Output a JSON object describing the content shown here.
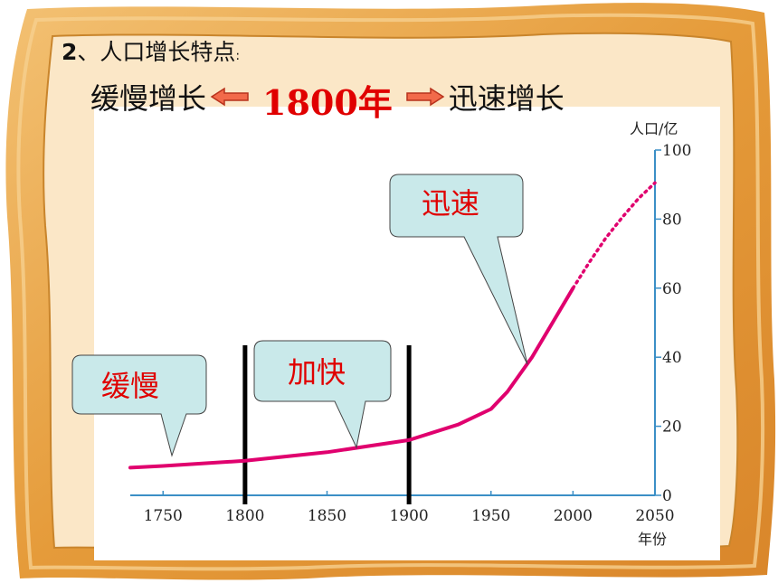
{
  "heading": {
    "number": "2",
    "text": "、人口增长特点",
    "colon": ":"
  },
  "subline": {
    "left": "缓慢增长",
    "year": "1800年",
    "right": "迅速增长"
  },
  "chart_data": {
    "type": "line",
    "ylabel": "人口/亿",
    "xlabel": "年份",
    "xlim": [
      1730,
      2050
    ],
    "ylim": [
      0,
      100
    ],
    "x_ticks": [
      1750,
      1800,
      1850,
      1900,
      1950,
      2000,
      2050
    ],
    "y_ticks": [
      0,
      20,
      40,
      60,
      80,
      100
    ],
    "series": [
      {
        "x": [
          1730,
          1750,
          1800,
          1850,
          1900,
          1930,
          1950,
          1960,
          1975,
          1990,
          2000
        ],
        "y": [
          8,
          8.5,
          10,
          12.5,
          16,
          20.5,
          25,
          30,
          40,
          52,
          60
        ],
        "style": "solid",
        "color": "#e0006e"
      },
      {
        "x": [
          2000,
          2010,
          2020,
          2030,
          2040,
          2050
        ],
        "y": [
          60,
          67.5,
          74.5,
          80.5,
          86,
          90.5
        ],
        "style": "dotted",
        "color": "#e0006e"
      }
    ],
    "dividers": [
      1800,
      1900
    ],
    "annotations": [
      {
        "text": "缓慢",
        "points_to": [
          1765,
          10
        ]
      },
      {
        "text": "加快",
        "points_to": [
          1875,
          14
        ]
      },
      {
        "text": "迅速",
        "points_to": [
          1968,
          38
        ]
      }
    ]
  },
  "colors": {
    "frame": "#e7a13c",
    "board": "#fbe7c7",
    "accent": "#e00000",
    "curve": "#e0006e",
    "callout": "#c9e9ea"
  }
}
